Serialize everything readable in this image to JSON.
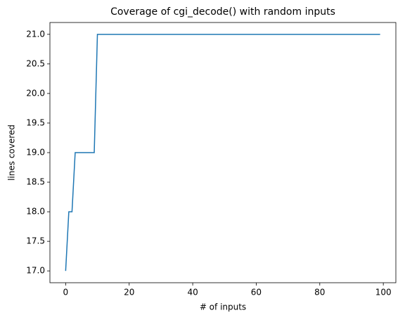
{
  "chart_data": {
    "type": "line",
    "title": "Coverage of cgi_decode() with random inputs",
    "x_label": "# of inputs",
    "y_label": "lines covered",
    "x": [
      0,
      1,
      2,
      3,
      9,
      10,
      99
    ],
    "series": [
      {
        "color": "#1f77b4",
        "values": [
          17,
          18,
          18,
          19,
          19,
          21,
          21
        ]
      }
    ],
    "xlim": [
      -4.95,
      103.95
    ],
    "xticks": [
      0,
      20,
      40,
      60,
      80,
      100
    ],
    "ylim": [
      16.8,
      21.2
    ],
    "yticks": [
      {
        "value": 17,
        "label": "17.0"
      },
      {
        "value": 17.5,
        "label": "17.5"
      },
      {
        "value": 18,
        "label": "18.0"
      },
      {
        "value": 18.5,
        "label": "18.5"
      },
      {
        "value": 19,
        "label": "19.0"
      },
      {
        "value": 19.5,
        "label": "19.5"
      },
      {
        "value": 20,
        "label": "20.0"
      },
      {
        "value": 20.5,
        "label": "20.5"
      },
      {
        "value": 21,
        "label": "21.0"
      }
    ],
    "grid": false
  }
}
